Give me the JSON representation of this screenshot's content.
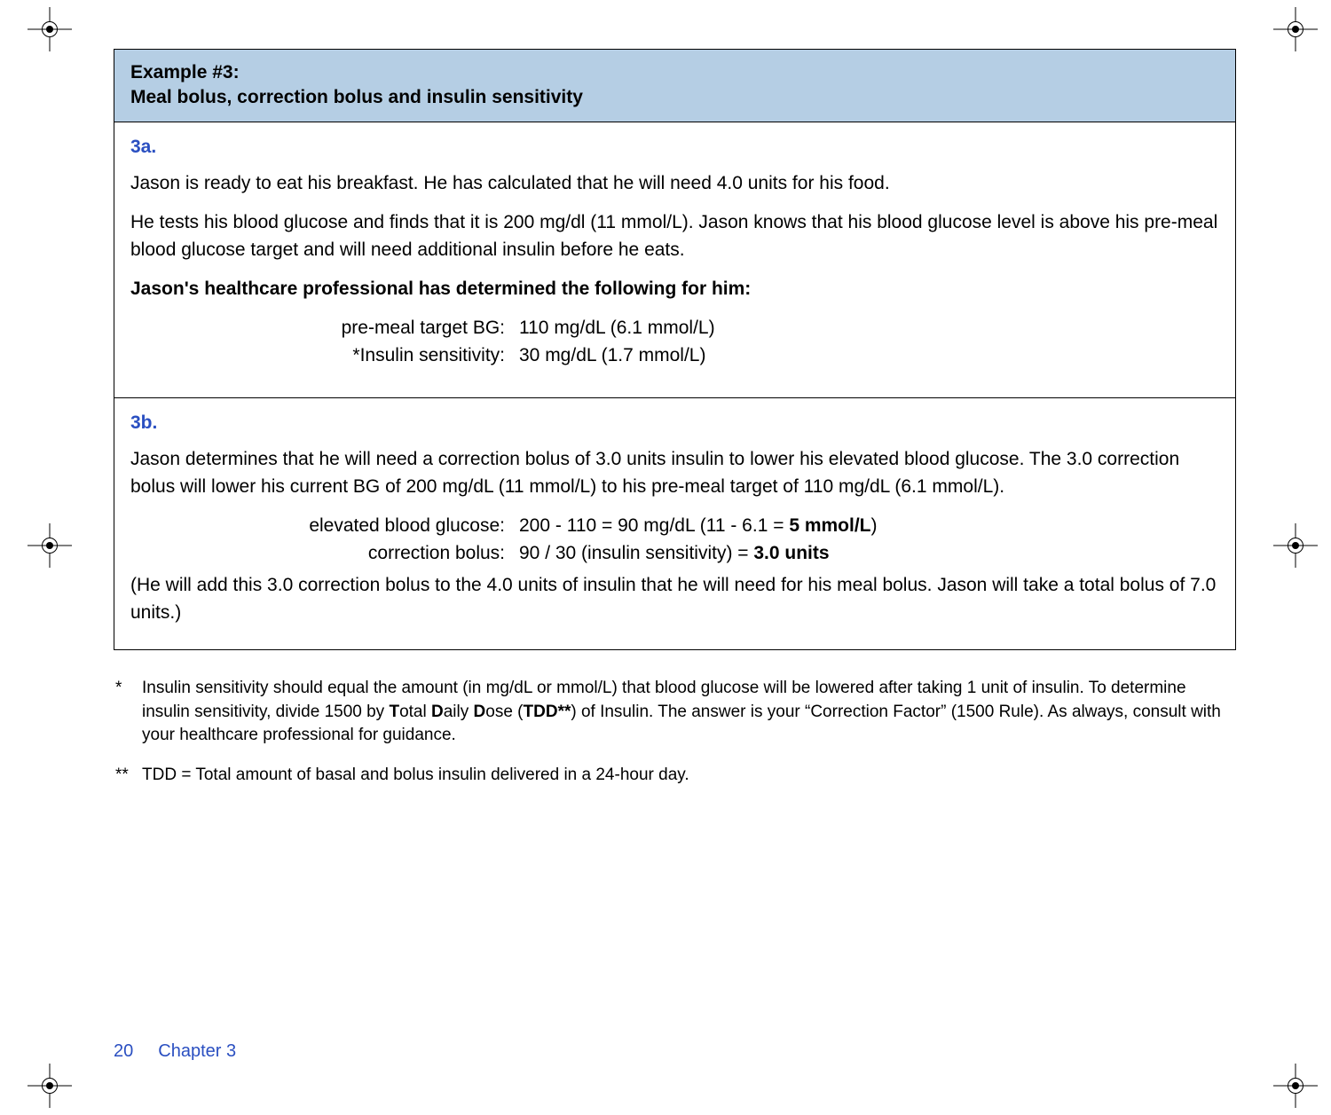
{
  "colors": {
    "header_bg": "#b5cee4",
    "border": "#000000",
    "accent": "#2a4fc1",
    "text": "#000000",
    "background": "#ffffff"
  },
  "typography": {
    "body_fontsize_pt": 16,
    "footnote_fontsize_pt": 14,
    "font_family": "Verdana, Geneva, sans-serif"
  },
  "header": {
    "line1": "Example #3:",
    "line2": "Meal bolus, correction bolus and insulin sensitivity"
  },
  "section3a": {
    "label": "3a.",
    "p1": "Jason is ready to eat his breakfast. He has calculated that he will need 4.0 units for his food.",
    "p2": "He tests his blood glucose and finds that it is 200 mg/dl (11 mmol/L). Jason knows that his blood glucose level is above his pre-meal blood glucose target and will need additional insulin before he eats.",
    "p3_bold": "Jason's healthcare professional has determined the following for him:",
    "kv": [
      {
        "key": "pre-meal target BG:",
        "val": "110 mg/dL (6.1 mmol/L)"
      },
      {
        "key": "*Insulin sensitivity:",
        "val": "30 mg/dL (1.7 mmol/L)"
      }
    ]
  },
  "section3b": {
    "label": "3b.",
    "p1": "Jason determines that he will need a correction bolus of 3.0 units insulin to lower his elevated blood glucose. The 3.0 correction bolus will lower his current BG of 200 mg/dL (11 mmol/L) to his pre-meal target of 110 mg/dL (6.1 mmol/L).",
    "kv": [
      {
        "key": "elevated blood glucose:",
        "val_pre": "200 - 110 = 90 mg/dL (11 - 6.1 = ",
        "val_bold": "5 mmol/L",
        "val_post": ")"
      },
      {
        "key": "correction bolus:",
        "val_pre": "90 / 30 (insulin sensitivity) = ",
        "val_bold": "3.0 units",
        "val_post": ""
      }
    ],
    "p2": "(He will add this 3.0 correction bolus to the 4.0 units of insulin that he will need for his meal bolus. Jason will take a total bolus of 7.0 units.)"
  },
  "footnotes": {
    "f1_mark": "*",
    "f1_pre": "Insulin sensitivity should equal the amount (in mg/dL or mmol/L) that blood glucose will be lowered after taking 1 unit of insulin. To determine insulin sensitivity, divide 1500 by ",
    "f1_b1": "T",
    "f1_m1": "otal ",
    "f1_b2": "D",
    "f1_m2": "aily ",
    "f1_b3": "D",
    "f1_m3": "ose (",
    "f1_b4": "TDD**",
    "f1_post": ") of Insulin. The answer is your “Correction Factor” (1500 Rule). As always, consult with your healthcare professional for guidance.",
    "f2_mark": "**",
    "f2_text": "TDD = Total amount of basal and bolus insulin delivered in a 24-hour day."
  },
  "footer": {
    "page_num": "20",
    "chapter": "Chapter 3"
  }
}
